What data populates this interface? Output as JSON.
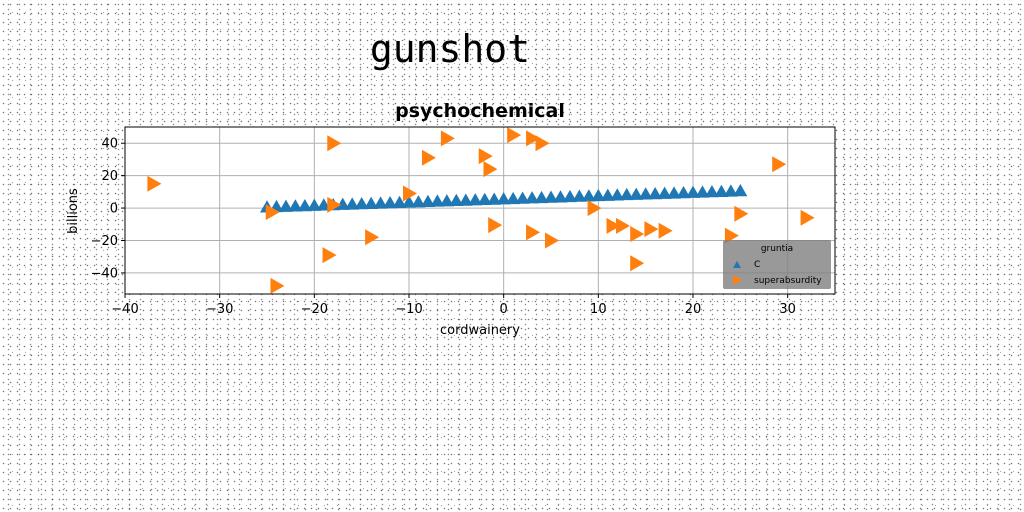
{
  "page_title": "gunshot",
  "chart_data": {
    "type": "scatter",
    "title": "psychochemical",
    "xlabel": "cordwainery",
    "ylabel": "billions",
    "xlim": [
      -40,
      35
    ],
    "ylim": [
      -53,
      50
    ],
    "xticks": [
      -40,
      -30,
      -20,
      -10,
      0,
      10,
      20,
      30
    ],
    "yticks": [
      -40,
      -20,
      0,
      20,
      40
    ],
    "grid": true,
    "legend": {
      "title": "gruntia",
      "placement": "lower right"
    },
    "series": [
      {
        "name": "C",
        "marker": "triangle-up",
        "color": "#1f77b4",
        "x": [
          -25.0,
          -24.0,
          -23.0,
          -22.0,
          -21.0,
          -20.0,
          -19.0,
          -18.0,
          -17.0,
          -16.0,
          -15.0,
          -14.0,
          -13.0,
          -12.0,
          -11.0,
          -10.0,
          -9.0,
          -8.0,
          -7.0,
          -6.0,
          -5.0,
          -4.0,
          -3.0,
          -2.0,
          -1.0,
          0.0,
          1.0,
          2.0,
          3.0,
          4.0,
          5.0,
          6.0,
          7.0,
          8.0,
          9.0,
          10.0,
          11.0,
          12.0,
          13.0,
          14.0,
          15.0,
          16.0,
          17.0,
          18.0,
          19.0,
          20.0,
          21.0,
          22.0,
          23.0,
          24.0,
          25.0
        ],
        "y": [
          0.5,
          0.7,
          0.9,
          1.1,
          1.3,
          1.5,
          1.7,
          1.9,
          2.1,
          2.3,
          2.5,
          2.7,
          2.9,
          3.1,
          3.3,
          3.5,
          3.7,
          3.9,
          4.1,
          4.3,
          4.5,
          4.7,
          4.9,
          5.1,
          5.3,
          5.5,
          5.7,
          5.9,
          6.1,
          6.3,
          6.5,
          6.7,
          6.9,
          7.1,
          7.3,
          7.5,
          7.7,
          7.9,
          8.1,
          8.3,
          8.5,
          8.7,
          8.9,
          9.1,
          9.3,
          9.5,
          9.7,
          9.9,
          10.1,
          10.3,
          10.5
        ]
      },
      {
        "name": "superabsurdity",
        "marker": "triangle-right",
        "color": "#ff7f0e",
        "points": [
          [
            -37,
            15
          ],
          [
            -18,
            40
          ],
          [
            -6,
            43
          ],
          [
            -8,
            31
          ],
          [
            1,
            45
          ],
          [
            3,
            43
          ],
          [
            4,
            40
          ],
          [
            -2,
            32
          ],
          [
            -1.5,
            24
          ],
          [
            29,
            27
          ],
          [
            -24.5,
            -2.5
          ],
          [
            -18,
            2
          ],
          [
            -10,
            9
          ],
          [
            9.5,
            0
          ],
          [
            25,
            -3.5
          ],
          [
            32,
            -6
          ],
          [
            -1,
            -10.5
          ],
          [
            3,
            -15
          ],
          [
            5,
            -20
          ],
          [
            11.5,
            -11
          ],
          [
            12.5,
            -11
          ],
          [
            14,
            -16
          ],
          [
            15.5,
            -13
          ],
          [
            17,
            -14
          ],
          [
            24,
            -17
          ],
          [
            -14,
            -18
          ],
          [
            -18.5,
            -29
          ],
          [
            14,
            -34
          ],
          [
            -24,
            -48
          ]
        ]
      }
    ]
  }
}
